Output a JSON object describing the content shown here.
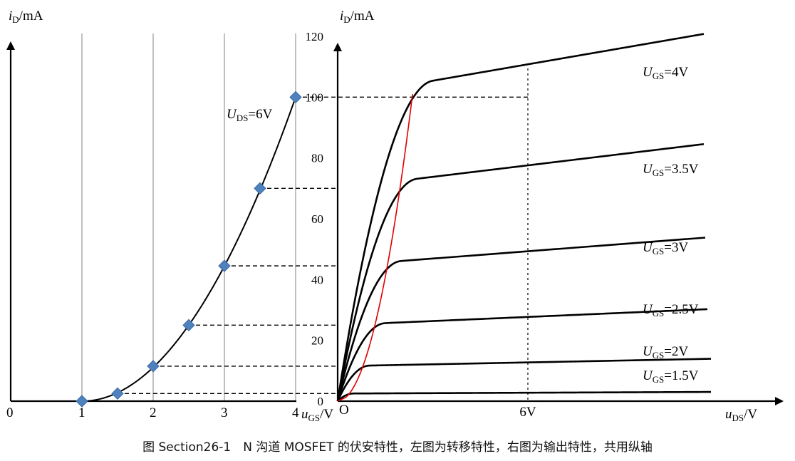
{
  "caption": "图 Section26-1　N 沟道 MOSFET 的伏安特性，左图为转移特性，右图为输出特性，共用纵轴",
  "chart_data": [
    {
      "type": "scatter",
      "name": "transfer",
      "x_title": "u_GS/V",
      "y_title": "i_D/mA",
      "x_ticks": [
        "0",
        "1",
        "2",
        "3",
        "4"
      ],
      "xlim": [
        0,
        4
      ],
      "y_ticks": [
        "0",
        "20",
        "40",
        "60",
        "80",
        "100",
        "120"
      ],
      "ylim": [
        0,
        120
      ],
      "grid": "vertical",
      "curve_label": "U_DS=6V",
      "points": [
        {
          "x": 1.0,
          "y": 0
        },
        {
          "x": 1.5,
          "y": 2.5
        },
        {
          "x": 2.0,
          "y": 11.5
        },
        {
          "x": 2.5,
          "y": 25
        },
        {
          "x": 3.0,
          "y": 44.5
        },
        {
          "x": 3.5,
          "y": 70
        },
        {
          "x": 4.0,
          "y": 100
        }
      ],
      "colors": {
        "marker": "#4f81bd",
        "curve": "#000000",
        "grid": "#a6a6a6"
      }
    },
    {
      "type": "line",
      "name": "output",
      "x_title": "u_DS/V",
      "y_title": "i_D/mA",
      "origin_label": "O",
      "x_ticks": [
        "6V"
      ],
      "series": [
        {
          "name": "U_GS=1.5V",
          "ugs": 1.5,
          "saturation_value": 2.5
        },
        {
          "name": "U_GS=2V",
          "ugs": 2.0,
          "saturation_value": 11.5
        },
        {
          "name": "U_GS=2.5V",
          "ugs": 2.5,
          "saturation_value": 25
        },
        {
          "name": "U_GS=3V",
          "ugs": 3.0,
          "saturation_value": 44.5
        },
        {
          "name": "U_GS=3.5V",
          "ugs": 3.5,
          "saturation_value": 70
        },
        {
          "name": "U_GS=4V",
          "ugs": 4.0,
          "saturation_value": 100
        }
      ],
      "boundary_curve": "pinch-off",
      "colors": {
        "curves": "#000000",
        "boundary": "#e00000"
      }
    }
  ]
}
